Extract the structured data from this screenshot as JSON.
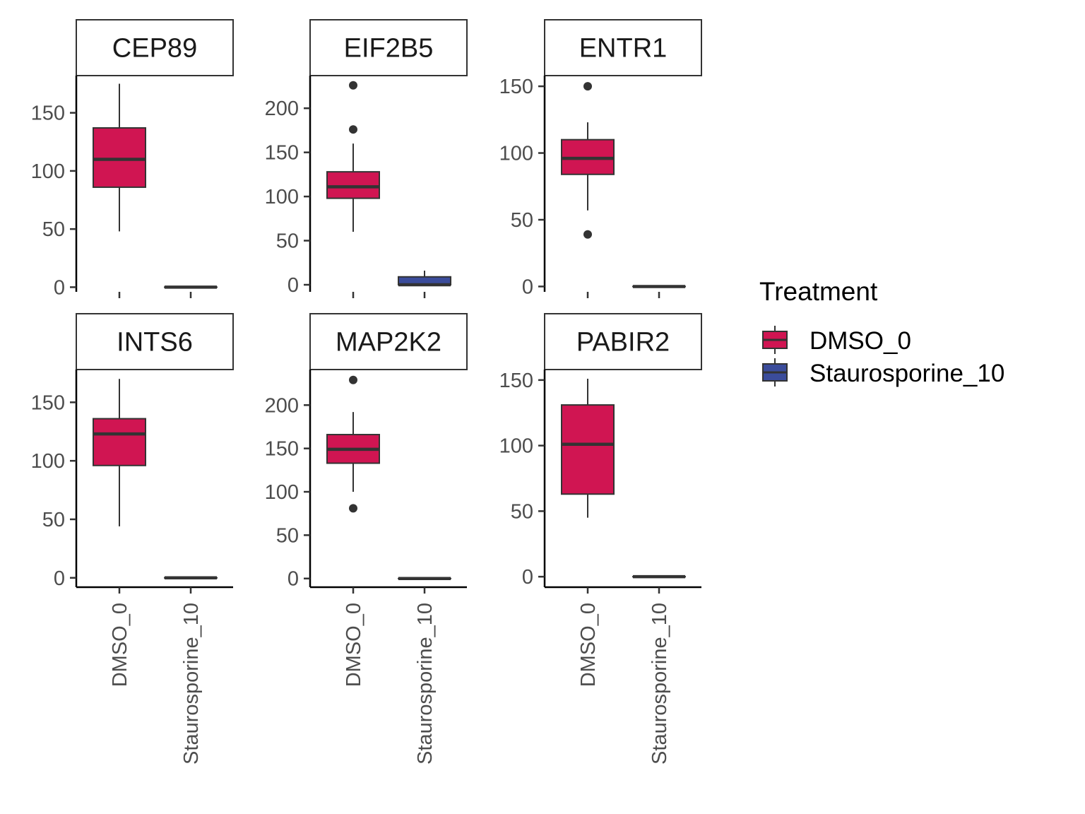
{
  "chart_data": {
    "type": "box",
    "legend": {
      "title": "Treatment",
      "position": "right",
      "entries": [
        {
          "name": "DMSO_0",
          "color": "#D01552"
        },
        {
          "name": "Staurosporine_10",
          "color": "#3B4C9B"
        }
      ]
    },
    "categories": [
      "DMSO_0",
      "Staurosporine_10"
    ],
    "facets": [
      {
        "title": "CEP89",
        "ylim": [
          -4,
          182
        ],
        "yticks": [
          0,
          50,
          100,
          150
        ],
        "boxes": [
          {
            "group": "DMSO_0",
            "lower_whisker": 48,
            "q1": 86,
            "median": 110,
            "q3": 137,
            "upper_whisker": 175,
            "outliers": []
          },
          {
            "group": "Staurosporine_10",
            "lower_whisker": 0,
            "q1": 0,
            "median": 0,
            "q3": 0,
            "upper_whisker": 0,
            "outliers": []
          }
        ]
      },
      {
        "title": "EIF2B5",
        "ylim": [
          -8,
          237
        ],
        "yticks": [
          0,
          50,
          100,
          150,
          200
        ],
        "boxes": [
          {
            "group": "DMSO_0",
            "lower_whisker": 60,
            "q1": 98,
            "median": 111,
            "q3": 128,
            "upper_whisker": 160,
            "outliers": [
              176,
              226
            ]
          },
          {
            "group": "Staurosporine_10",
            "lower_whisker": 0,
            "q1": 0,
            "median": 0,
            "q3": 9,
            "upper_whisker": 16,
            "outliers": []
          }
        ]
      },
      {
        "title": "ENTR1",
        "ylim": [
          -4,
          158
        ],
        "yticks": [
          0,
          50,
          100,
          150
        ],
        "boxes": [
          {
            "group": "DMSO_0",
            "lower_whisker": 57,
            "q1": 84,
            "median": 96,
            "q3": 110,
            "upper_whisker": 123,
            "outliers": [
              39,
              150
            ]
          },
          {
            "group": "Staurosporine_10",
            "lower_whisker": 0,
            "q1": 0,
            "median": 0,
            "q3": 0,
            "upper_whisker": 0,
            "outliers": []
          }
        ]
      },
      {
        "title": "INTS6",
        "ylim": [
          -8,
          178
        ],
        "yticks": [
          0,
          50,
          100,
          150
        ],
        "boxes": [
          {
            "group": "DMSO_0",
            "lower_whisker": 44,
            "q1": 96,
            "median": 123,
            "q3": 136,
            "upper_whisker": 170,
            "outliers": []
          },
          {
            "group": "Staurosporine_10",
            "lower_whisker": 0,
            "q1": 0,
            "median": 0,
            "q3": 0,
            "upper_whisker": 0,
            "outliers": []
          }
        ]
      },
      {
        "title": "MAP2K2",
        "ylim": [
          -10,
          241
        ],
        "yticks": [
          0,
          50,
          100,
          150,
          200
        ],
        "boxes": [
          {
            "group": "DMSO_0",
            "lower_whisker": 100,
            "q1": 133,
            "median": 149,
            "q3": 166,
            "upper_whisker": 192,
            "outliers": [
              81,
              229
            ]
          },
          {
            "group": "Staurosporine_10",
            "lower_whisker": 0,
            "q1": 0,
            "median": 0,
            "q3": 0,
            "upper_whisker": 0,
            "outliers": []
          }
        ]
      },
      {
        "title": "PABIR2",
        "ylim": [
          -8,
          158
        ],
        "yticks": [
          0,
          50,
          100,
          150
        ],
        "boxes": [
          {
            "group": "DMSO_0",
            "lower_whisker": 45,
            "q1": 63,
            "median": 101,
            "q3": 131,
            "upper_whisker": 151,
            "outliers": []
          },
          {
            "group": "Staurosporine_10",
            "lower_whisker": 0,
            "q1": 0,
            "median": 0,
            "q3": 0,
            "upper_whisker": 0,
            "outliers": []
          }
        ]
      }
    ]
  }
}
